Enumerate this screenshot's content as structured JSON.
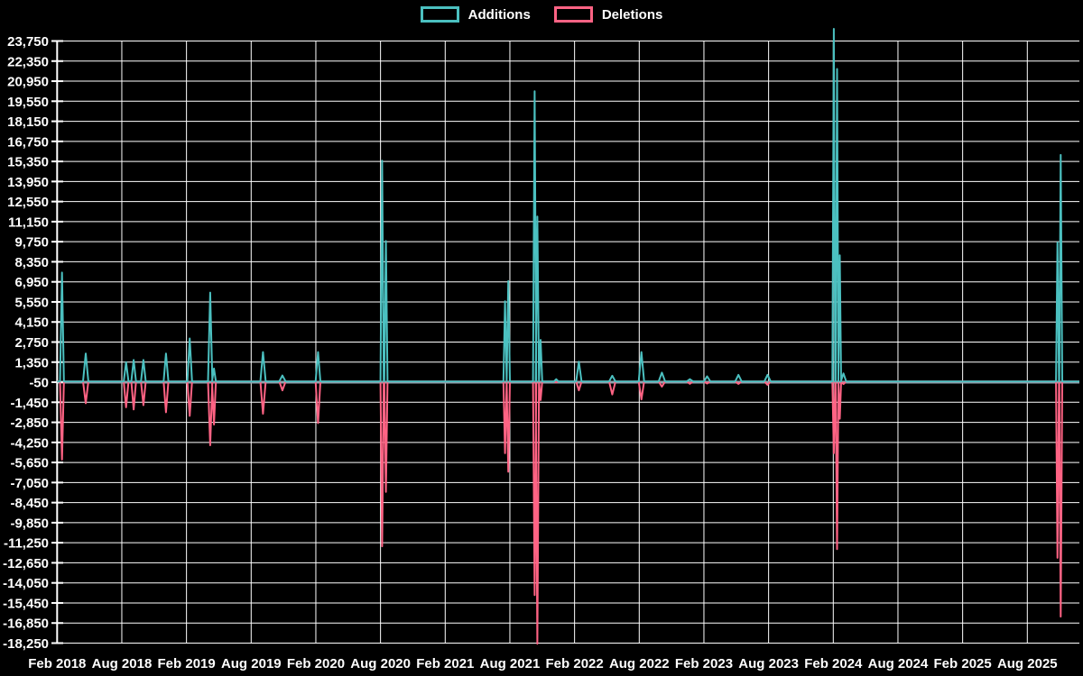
{
  "page": {
    "background": "#000000"
  },
  "legend": {
    "items": [
      {
        "label": "Additions",
        "color": "#4bc0c0"
      },
      {
        "label": "Deletions",
        "color": "#ff6384"
      }
    ]
  },
  "chart_data": {
    "type": "line",
    "title": "",
    "legend_position": "top",
    "grid": true,
    "series_names": [
      "Additions",
      "Deletions"
    ],
    "colors": {
      "additions": "#4bc0c0",
      "deletions": "#ff6384",
      "gridline": "#ffffff",
      "zero_line": "#90a4ae",
      "text": "#ffffff",
      "background": "#000000"
    },
    "y_axis": {
      "max": 23750,
      "min": -18250,
      "step": 1400,
      "zero_line_value": -50
    },
    "x_axis": {
      "start_label": "Feb 2018",
      "end_label": "Aug 2025",
      "interval_months": 6
    },
    "x_tick_labels": [
      "Feb 2018",
      "Aug 2018",
      "Feb 2019",
      "Aug 2019",
      "Feb 2020",
      "Aug 2020",
      "Feb 2021",
      "Aug 2021",
      "Feb 2022",
      "Aug 2022",
      "Feb 2023",
      "Aug 2023",
      "Feb 2024",
      "Aug 2024",
      "Feb 2025",
      "Aug 2025"
    ],
    "y_tick_labels": [
      "23,750",
      "22,350",
      "20,950",
      "19,550",
      "18,150",
      "16,750",
      "15,350",
      "13,950",
      "12,550",
      "11,150",
      "9,750",
      "8,350",
      "6,950",
      "5,550",
      "4,150",
      "2,750",
      "1,350",
      "-50",
      "-1,450",
      "-2,850",
      "-4,250",
      "-5,650",
      "-7,050",
      "-8,450",
      "-9,850",
      "-11,250",
      "-12,650",
      "-14,050",
      "-15,450",
      "-16,850",
      "-18,250"
    ],
    "spikes_note": "t = months after Feb 2018; add = additions (+), del = deletions (-); w = half-width in months; all other weeks ~0",
    "spikes": [
      {
        "t": 0.45,
        "add": 7600,
        "del": -5450,
        "w": 0.18
      },
      {
        "t": 2.65,
        "add": 1950,
        "del": -1520,
        "w": 0.25
      },
      {
        "t": 6.4,
        "add": 1350,
        "del": -1800,
        "w": 0.22
      },
      {
        "t": 7.1,
        "add": 1500,
        "del": -1950,
        "w": 0.22
      },
      {
        "t": 8.0,
        "add": 1500,
        "del": -1650,
        "w": 0.22
      },
      {
        "t": 10.1,
        "add": 1950,
        "del": -2150,
        "w": 0.22
      },
      {
        "t": 12.3,
        "add": 3000,
        "del": -2400,
        "w": 0.22
      },
      {
        "t": 14.2,
        "add": 6200,
        "del": -4450,
        "w": 0.2
      },
      {
        "t": 14.55,
        "add": 900,
        "del": -3000,
        "w": 0.18
      },
      {
        "t": 19.1,
        "add": 2050,
        "del": -2250,
        "w": 0.25
      },
      {
        "t": 20.9,
        "add": 420,
        "del": -620,
        "w": 0.3
      },
      {
        "t": 24.2,
        "add": 2050,
        "del": -2900,
        "w": 0.22
      },
      {
        "t": 30.15,
        "add": 15400,
        "del": -11500,
        "w": 0.15
      },
      {
        "t": 30.5,
        "add": 9800,
        "del": -7700,
        "w": 0.15
      },
      {
        "t": 41.55,
        "add": 5600,
        "del": -5000,
        "w": 0.15
      },
      {
        "t": 41.85,
        "add": 7000,
        "del": -6300,
        "w": 0.15
      },
      {
        "t": 44.3,
        "add": 20250,
        "del": -14900,
        "w": 0.15
      },
      {
        "t": 44.55,
        "add": 11500,
        "del": -18300,
        "w": 0.15
      },
      {
        "t": 44.85,
        "add": 2900,
        "del": -1300,
        "w": 0.15
      },
      {
        "t": 46.3,
        "add": 160,
        "del": -60,
        "w": 0.2
      },
      {
        "t": 48.4,
        "add": 1380,
        "del": -620,
        "w": 0.25
      },
      {
        "t": 51.5,
        "add": 400,
        "del": -900,
        "w": 0.3
      },
      {
        "t": 54.2,
        "add": 2050,
        "del": -1250,
        "w": 0.25
      },
      {
        "t": 56.1,
        "add": 620,
        "del": -360,
        "w": 0.3
      },
      {
        "t": 58.7,
        "add": 160,
        "del": -160,
        "w": 0.3
      },
      {
        "t": 60.3,
        "add": 360,
        "del": -140,
        "w": 0.3
      },
      {
        "t": 63.2,
        "add": 460,
        "del": -170,
        "w": 0.3
      },
      {
        "t": 65.9,
        "add": 460,
        "del": -230,
        "w": 0.3
      },
      {
        "t": 72.05,
        "add": 24600,
        "del": -5000,
        "w": 0.13
      },
      {
        "t": 72.35,
        "add": 21800,
        "del": -11700,
        "w": 0.13
      },
      {
        "t": 72.6,
        "add": 8800,
        "del": -2600,
        "w": 0.13
      },
      {
        "t": 72.95,
        "add": 560,
        "del": -180,
        "w": 0.25
      },
      {
        "t": 92.8,
        "add": 9700,
        "del": -12300,
        "w": 0.14
      },
      {
        "t": 93.1,
        "add": 15800,
        "del": -16400,
        "w": 0.14
      }
    ]
  }
}
